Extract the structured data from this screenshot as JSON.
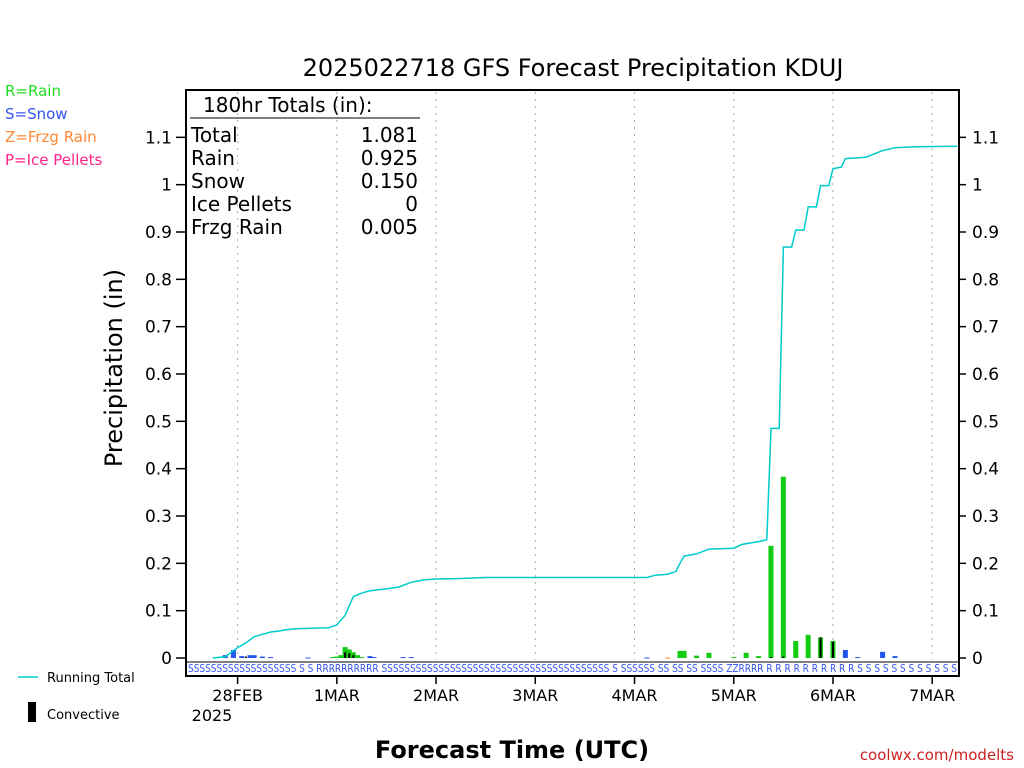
{
  "chart_data": {
    "type": "bar",
    "title": "2025022718 GFS Forecast Precipitation KDUJ",
    "xlabel": "Forecast Time (UTC)",
    "ylabel": "Precipitation (in)",
    "ylim": [
      0,
      1.2
    ],
    "y_ticks": [
      0,
      0.1,
      0.2,
      0.3,
      0.4,
      0.5,
      0.6,
      0.7,
      0.8,
      0.9,
      1,
      1.1
    ],
    "x_range_hours": [
      -6,
      180
    ],
    "x_ticks": [
      {
        "label": "28FEB",
        "hour": 6
      },
      {
        "label": "1MAR",
        "hour": 30
      },
      {
        "label": "2MAR",
        "hour": 54
      },
      {
        "label": "3MAR",
        "hour": 78
      },
      {
        "label": "4MAR",
        "hour": 102
      },
      {
        "label": "5MAR",
        "hour": 126
      },
      {
        "label": "6MAR",
        "hour": 150
      },
      {
        "label": "7MAR",
        "hour": 174
      }
    ],
    "x_year_label": "2025",
    "totals_box": {
      "header": "180hr Totals (in):",
      "rows": [
        {
          "label": "Total",
          "value": "1.081"
        },
        {
          "label": "Rain",
          "value": "0.925"
        },
        {
          "label": "Snow",
          "value": "0.150"
        },
        {
          "label": "Ice Pellets",
          "value": "0"
        },
        {
          "label": "Frzg Rain",
          "value": "0.005"
        }
      ]
    },
    "type_legend": [
      {
        "label": "R=Rain",
        "color": "#22dd22"
      },
      {
        "label": "S=Snow",
        "color": "#3355ee"
      },
      {
        "label": "Z=Frzg Rain",
        "color": "#ff8833"
      },
      {
        "label": "P=Ice Pellets",
        "color": "#ff2288"
      }
    ],
    "series_legend": [
      {
        "label": "Running Total",
        "color": "#00cccc"
      },
      {
        "label": "Convective",
        "color": "#000000"
      }
    ],
    "bars": [
      {
        "hour": 3,
        "value": 0.006,
        "type": "S"
      },
      {
        "hour": 5,
        "value": 0.017,
        "type": "S"
      },
      {
        "hour": 7,
        "value": 0.004,
        "type": "S"
      },
      {
        "hour": 9,
        "value": 0.006,
        "type": "S"
      },
      {
        "hour": 10,
        "value": 0.006,
        "type": "S"
      },
      {
        "hour": 12,
        "value": 0.003,
        "type": "S"
      },
      {
        "hour": 14,
        "value": 0.002,
        "type": "S"
      },
      {
        "hour": 23,
        "value": 0.001,
        "type": "S"
      },
      {
        "hour": 29,
        "value": 0.002,
        "type": "R"
      },
      {
        "hour": 30,
        "value": 0.003,
        "type": "R"
      },
      {
        "hour": 31,
        "value": 0.006,
        "type": "R"
      },
      {
        "hour": 32,
        "value": 0.023,
        "type": "R"
      },
      {
        "hour": 33,
        "value": 0.018,
        "type": "R"
      },
      {
        "hour": 34,
        "value": 0.012,
        "type": "R"
      },
      {
        "hour": 35,
        "value": 0.006,
        "type": "R"
      },
      {
        "hour": 36,
        "value": 0.002,
        "type": "R"
      },
      {
        "hour": 38,
        "value": 0.004,
        "type": "S"
      },
      {
        "hour": 39,
        "value": 0.002,
        "type": "S"
      },
      {
        "hour": 46,
        "value": 0.002,
        "type": "S"
      },
      {
        "hour": 48,
        "value": 0.002,
        "type": "S"
      },
      {
        "hour": 105,
        "value": 0.001,
        "type": "S"
      },
      {
        "hour": 110,
        "value": 0.001,
        "type": "Z"
      },
      {
        "hour": 113,
        "value": 0.015,
        "type": "R"
      },
      {
        "hour": 114,
        "value": 0.015,
        "type": "R"
      },
      {
        "hour": 117,
        "value": 0.005,
        "type": "R"
      },
      {
        "hour": 120,
        "value": 0.011,
        "type": "R"
      },
      {
        "hour": 126,
        "value": 0.002,
        "type": "R"
      },
      {
        "hour": 129,
        "value": 0.011,
        "type": "R"
      },
      {
        "hour": 132,
        "value": 0.004,
        "type": "R"
      },
      {
        "hour": 135,
        "value": 0.237,
        "type": "R"
      },
      {
        "hour": 138,
        "value": 0.383,
        "type": "R"
      },
      {
        "hour": 141,
        "value": 0.036,
        "type": "R"
      },
      {
        "hour": 144,
        "value": 0.049,
        "type": "R"
      },
      {
        "hour": 147,
        "value": 0.043,
        "type": "R"
      },
      {
        "hour": 150,
        "value": 0.036,
        "type": "R"
      },
      {
        "hour": 153,
        "value": 0.017,
        "type": "S"
      },
      {
        "hour": 156,
        "value": 0.002,
        "type": "S"
      },
      {
        "hour": 162,
        "value": 0.013,
        "type": "S"
      },
      {
        "hour": 165,
        "value": 0.004,
        "type": "S"
      }
    ],
    "convective": [
      {
        "hour": 8,
        "value": 0.003
      },
      {
        "hour": 32,
        "value": 0.012
      },
      {
        "hour": 33,
        "value": 0.01
      },
      {
        "hour": 34,
        "value": 0.006
      },
      {
        "hour": 135,
        "value": 0.002
      },
      {
        "hour": 138,
        "value": 0.003
      },
      {
        "hour": 147,
        "value": 0.044
      },
      {
        "hour": 150,
        "value": 0.034
      }
    ],
    "running_total": [
      [
        0,
        0
      ],
      [
        3,
        0.003
      ],
      [
        5,
        0.015
      ],
      [
        6,
        0.022
      ],
      [
        8,
        0.032
      ],
      [
        10,
        0.045
      ],
      [
        12,
        0.05
      ],
      [
        14,
        0.055
      ],
      [
        16,
        0.057
      ],
      [
        18,
        0.06
      ],
      [
        20,
        0.062
      ],
      [
        24,
        0.063
      ],
      [
        28,
        0.064
      ],
      [
        30,
        0.07
      ],
      [
        32,
        0.09
      ],
      [
        33,
        0.11
      ],
      [
        34,
        0.13
      ],
      [
        36,
        0.137
      ],
      [
        38,
        0.142
      ],
      [
        42,
        0.146
      ],
      [
        45,
        0.15
      ],
      [
        48,
        0.16
      ],
      [
        51,
        0.165
      ],
      [
        54,
        0.167
      ],
      [
        60,
        0.168
      ],
      [
        66,
        0.17
      ],
      [
        78,
        0.17
      ],
      [
        90,
        0.17
      ],
      [
        102,
        0.17
      ],
      [
        105,
        0.17
      ],
      [
        107,
        0.175
      ],
      [
        110,
        0.177
      ],
      [
        112,
        0.183
      ],
      [
        113,
        0.2
      ],
      [
        114,
        0.215
      ],
      [
        117,
        0.22
      ],
      [
        120,
        0.23
      ],
      [
        126,
        0.232
      ],
      [
        128,
        0.24
      ],
      [
        132,
        0.246
      ],
      [
        134,
        0.25
      ],
      [
        135,
        0.485
      ],
      [
        137,
        0.485
      ],
      [
        138,
        0.868
      ],
      [
        140,
        0.868
      ],
      [
        141,
        0.904
      ],
      [
        143,
        0.904
      ],
      [
        144,
        0.953
      ],
      [
        146,
        0.953
      ],
      [
        147,
        0.998
      ],
      [
        149,
        0.998
      ],
      [
        150,
        1.034
      ],
      [
        152,
        1.037
      ],
      [
        153,
        1.055
      ],
      [
        158,
        1.058
      ],
      [
        162,
        1.072
      ],
      [
        165,
        1.078
      ],
      [
        170,
        1.08
      ],
      [
        180,
        1.081
      ]
    ],
    "type_strip_text": "SSSSSSSSSSSSSSSSSSS S S RRRRRRRRRR SSSSSSSSSSSSSSSSSSSSSSSSSSSSSSSSSSSSSSSS S SSSSSS SS SS SS SSSS ZZRRRR R R R R R R R R R R S S S S S S S S S S S S"
  },
  "footer_credit": "coolwx.com/modelts"
}
